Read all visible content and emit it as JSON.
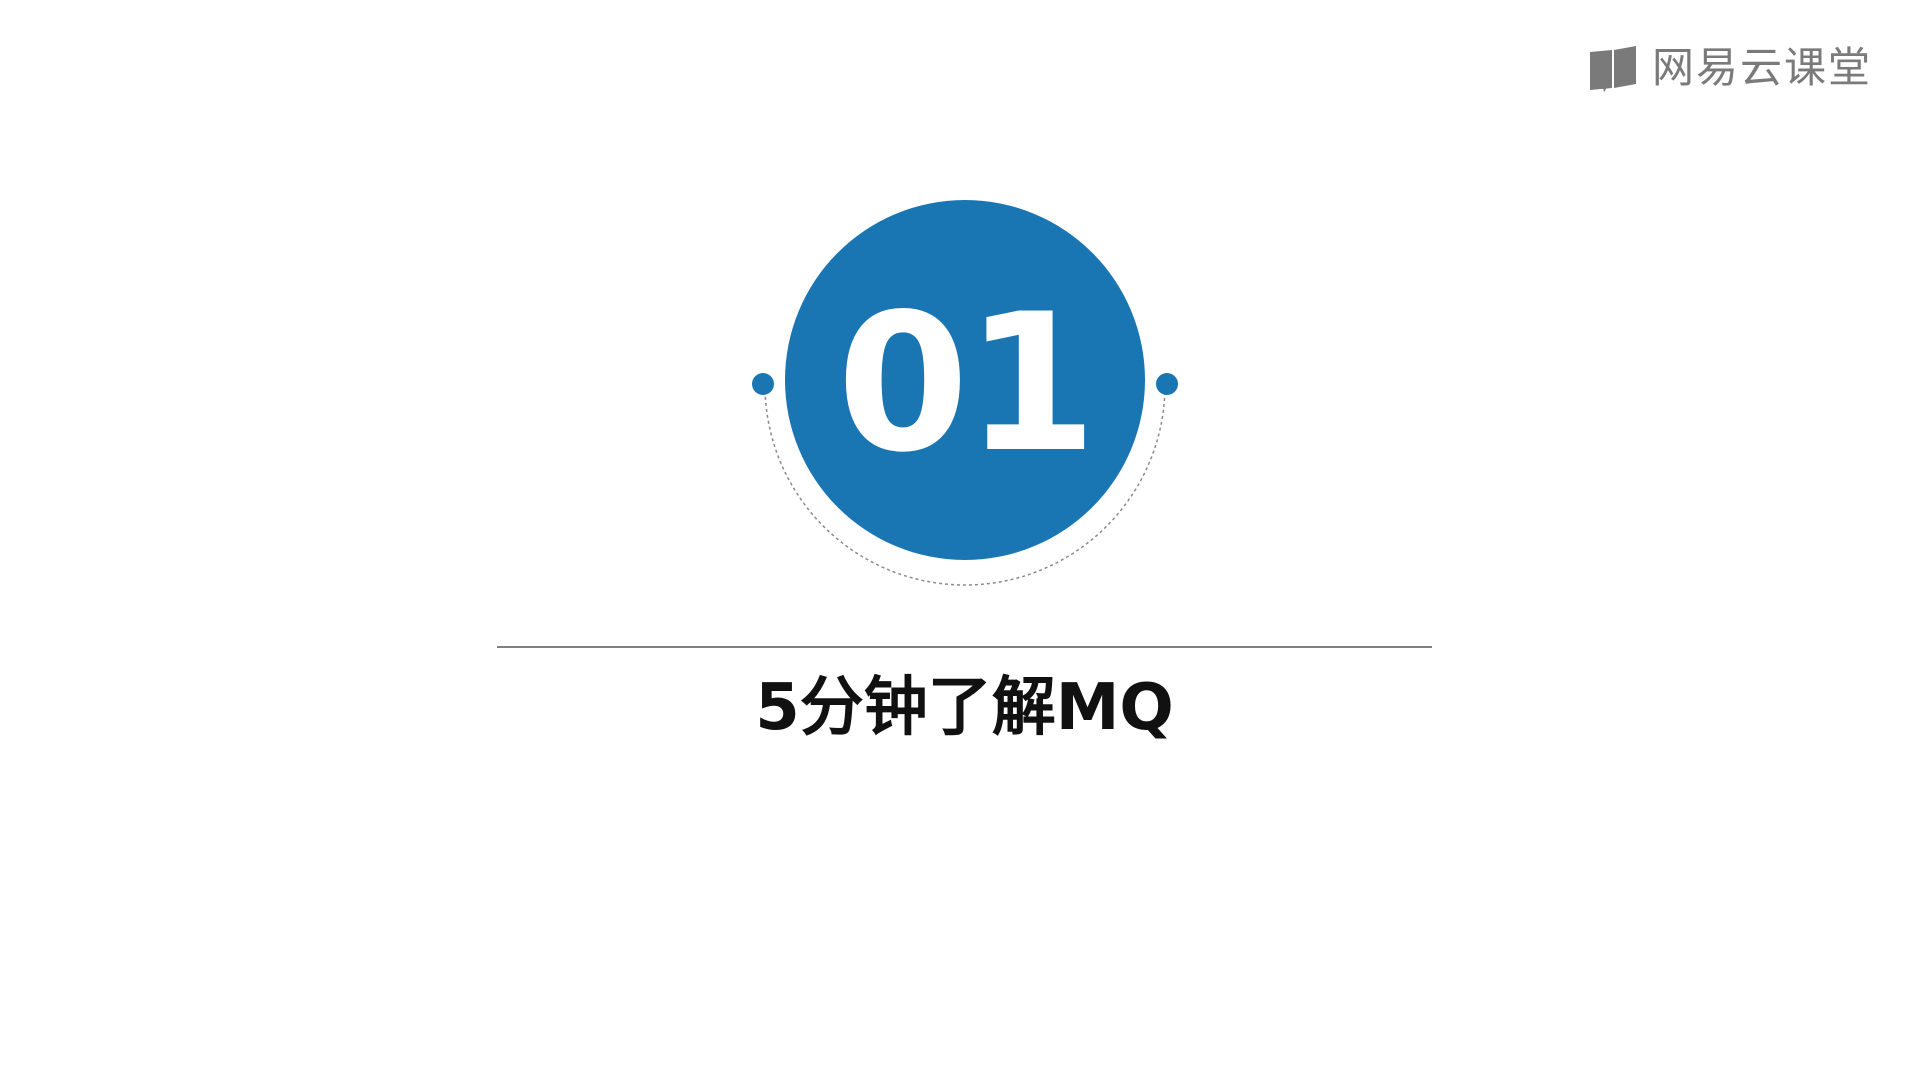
{
  "brand": {
    "name": "网易云课堂",
    "icon": "book-icon"
  },
  "badge": {
    "number": "01",
    "color": "#1a76b3"
  },
  "slide": {
    "title": "5分钟了解MQ"
  }
}
